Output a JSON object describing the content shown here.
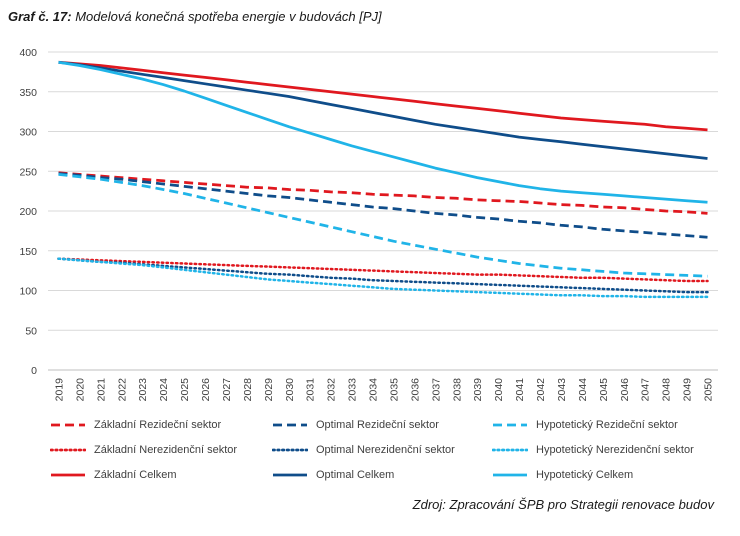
{
  "title": {
    "prefix": "Graf č. 17:",
    "text": "Modelová konečná spotřeba energie v budovách [PJ]"
  },
  "source": "Zdroj: Zpracování ŠPB pro Strategii renovace budov",
  "colors": {
    "red": "#e0181f",
    "navy": "#0f4d8a",
    "light": "#20b4e8",
    "grid": "#d9d9d9"
  },
  "chart_data": {
    "type": "line",
    "ylim": [
      0,
      400
    ],
    "yticks": [
      "0",
      "50",
      "100",
      "150",
      "200",
      "250",
      "300",
      "350",
      "400"
    ],
    "categories": [
      "2019",
      "2020",
      "2021",
      "2022",
      "2023",
      "2024",
      "2025",
      "2026",
      "2027",
      "2028",
      "2029",
      "2030",
      "2031",
      "2032",
      "2033",
      "2034",
      "2035",
      "2036",
      "2037",
      "2038",
      "2039",
      "2040",
      "2041",
      "2042",
      "2043",
      "2044",
      "2045",
      "2046",
      "2047",
      "2048",
      "2049",
      "2050"
    ],
    "grid": "horizontal",
    "legend_position": "bottom",
    "series": [
      {
        "name": "Základní Rezideční sektor",
        "color": "#e0181f",
        "style": "dashed",
        "values": [
          248,
          246,
          244,
          242,
          240,
          238,
          236,
          234,
          232,
          230,
          229,
          227,
          226,
          224,
          223,
          221,
          220,
          219,
          217,
          216,
          214,
          213,
          212,
          210,
          208,
          207,
          205,
          204,
          202,
          200,
          199,
          197
        ]
      },
      {
        "name": "Optimal Rezideční sektor",
        "color": "#0f4d8a",
        "style": "dashed",
        "values": [
          247,
          245,
          242,
          240,
          237,
          234,
          231,
          228,
          225,
          222,
          219,
          217,
          214,
          211,
          208,
          205,
          203,
          200,
          197,
          195,
          192,
          190,
          187,
          185,
          182,
          180,
          177,
          175,
          173,
          171,
          169,
          167
        ]
      },
      {
        "name": "Hypotetický Rezideční sektor",
        "color": "#20b4e8",
        "style": "dashed",
        "values": [
          246,
          243,
          240,
          236,
          232,
          227,
          222,
          216,
          210,
          204,
          198,
          192,
          186,
          180,
          174,
          168,
          162,
          157,
          152,
          147,
          142,
          138,
          134,
          131,
          128,
          126,
          124,
          122,
          121,
          120,
          119,
          118
        ]
      },
      {
        "name": "Základní Nerezidenční sektor",
        "color": "#e0181f",
        "style": "dotted",
        "values": [
          140,
          139,
          138,
          137,
          136,
          135,
          134,
          133,
          132,
          131,
          130,
          129,
          128,
          127,
          126,
          125,
          124,
          123,
          122,
          121,
          120,
          120,
          119,
          118,
          117,
          116,
          116,
          115,
          114,
          113,
          112,
          112
        ]
      },
      {
        "name": "Optimal Nerezidenční sektor",
        "color": "#0f4d8a",
        "style": "dotted",
        "values": [
          140,
          138,
          136,
          135,
          133,
          131,
          129,
          127,
          125,
          123,
          121,
          120,
          118,
          116,
          115,
          113,
          112,
          111,
          110,
          109,
          108,
          107,
          106,
          105,
          104,
          103,
          102,
          101,
          100,
          99,
          98,
          98
        ]
      },
      {
        "name": "Hypotetický Nerezidenční sektor",
        "color": "#20b4e8",
        "style": "dotted",
        "values": [
          140,
          138,
          136,
          134,
          132,
          129,
          126,
          123,
          120,
          117,
          114,
          112,
          110,
          108,
          106,
          104,
          102,
          101,
          100,
          99,
          98,
          97,
          96,
          95,
          94,
          94,
          93,
          93,
          92,
          92,
          92,
          92
        ]
      },
      {
        "name": "Základní Celkem",
        "color": "#e0181f",
        "style": "solid",
        "values": [
          387,
          385,
          383,
          380,
          377,
          374,
          371,
          368,
          365,
          362,
          359,
          356,
          353,
          350,
          347,
          344,
          341,
          338,
          335,
          332,
          329,
          326,
          323,
          320,
          317,
          315,
          313,
          311,
          309,
          306,
          304,
          302
        ]
      },
      {
        "name": "Optimal Celkem",
        "color": "#0f4d8a",
        "style": "solid",
        "values": [
          387,
          384,
          380,
          376,
          372,
          368,
          364,
          360,
          356,
          352,
          348,
          344,
          339,
          334,
          329,
          324,
          319,
          314,
          309,
          305,
          301,
          297,
          293,
          290,
          287,
          284,
          281,
          278,
          275,
          272,
          269,
          266
        ]
      },
      {
        "name": "Hypotetický Celkem",
        "color": "#20b4e8",
        "style": "solid",
        "values": [
          387,
          383,
          378,
          372,
          366,
          359,
          351,
          342,
          333,
          324,
          315,
          306,
          298,
          290,
          282,
          275,
          268,
          261,
          254,
          248,
          242,
          237,
          232,
          228,
          225,
          223,
          221,
          219,
          217,
          215,
          213,
          211
        ]
      }
    ]
  }
}
